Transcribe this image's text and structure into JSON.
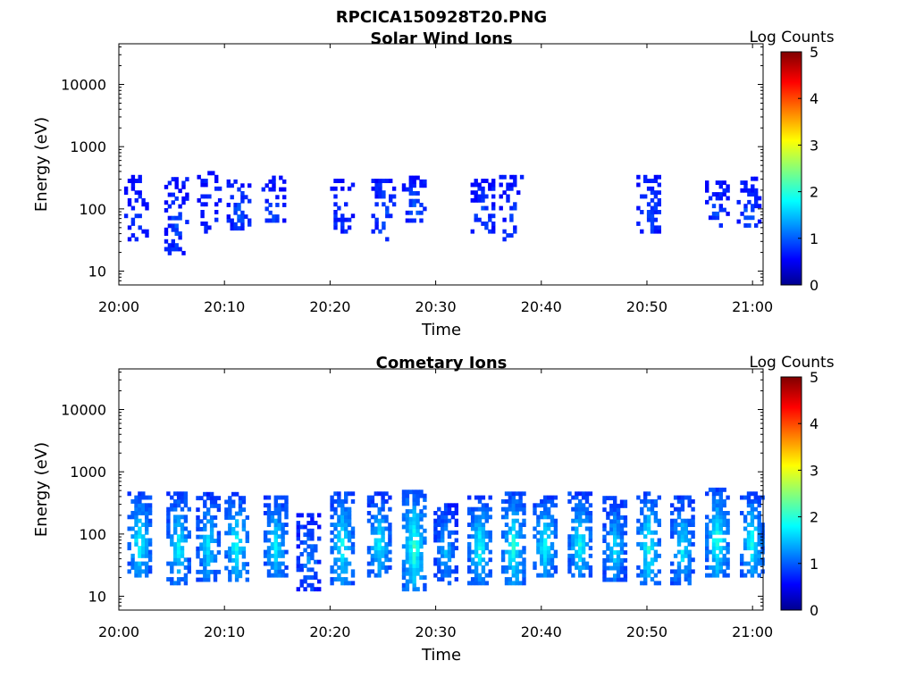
{
  "figure": {
    "title": "RPCICA150928T20.PNG"
  },
  "colorbar": {
    "label": "Log Counts",
    "ticks": [
      "0",
      "1",
      "2",
      "3",
      "4",
      "5"
    ],
    "range": [
      0,
      5
    ],
    "colormap": "jet"
  },
  "chart_data": [
    {
      "type": "heatmap",
      "title": "Solar Wind Ions",
      "xlabel": "Time",
      "ylabel": "Energy (eV)",
      "yscale": "log",
      "ylim": [
        6,
        45000
      ],
      "xlim_minutes_after_2000": [
        0,
        61
      ],
      "xticks": [
        "20:00",
        "20:10",
        "20:20",
        "20:30",
        "20:40",
        "20:50",
        "21:00"
      ],
      "yticks": [
        "10",
        "100",
        "1000",
        "10000"
      ],
      "bursts": [
        {
          "t": 1.5,
          "emin": 30,
          "emax": 300,
          "level": 0.3,
          "density": 0.45
        },
        {
          "t": 5.3,
          "emin": 18,
          "emax": 280,
          "level": 0.4,
          "density": 0.55
        },
        {
          "t": 8.4,
          "emin": 40,
          "emax": 350,
          "level": 0.35,
          "density": 0.35
        },
        {
          "t": 11.2,
          "emin": 45,
          "emax": 280,
          "level": 0.45,
          "density": 0.5
        },
        {
          "t": 14.5,
          "emin": 60,
          "emax": 300,
          "level": 0.4,
          "density": 0.45
        },
        {
          "t": 21.0,
          "emin": 40,
          "emax": 280,
          "level": 0.35,
          "density": 0.3
        },
        {
          "t": 24.9,
          "emin": 30,
          "emax": 320,
          "level": 0.45,
          "density": 0.4
        },
        {
          "t": 27.8,
          "emin": 60,
          "emax": 300,
          "level": 0.5,
          "density": 0.55
        },
        {
          "t": 34.3,
          "emin": 40,
          "emax": 260,
          "level": 0.4,
          "density": 0.4
        },
        {
          "t": 37.0,
          "emin": 30,
          "emax": 300,
          "level": 0.35,
          "density": 0.35
        },
        {
          "t": 50.0,
          "emin": 40,
          "emax": 300,
          "level": 0.45,
          "density": 0.45
        },
        {
          "t": 56.5,
          "emin": 50,
          "emax": 250,
          "level": 0.4,
          "density": 0.45
        },
        {
          "t": 59.5,
          "emin": 50,
          "emax": 300,
          "level": 0.45,
          "density": 0.5
        }
      ]
    },
    {
      "type": "heatmap",
      "title": "Cometary Ions",
      "xlabel": "Time",
      "ylabel": "Energy (eV)",
      "yscale": "log",
      "ylim": [
        6,
        45000
      ],
      "xlim_minutes_after_2000": [
        0,
        61
      ],
      "xticks": [
        "20:00",
        "20:10",
        "20:20",
        "20:30",
        "20:40",
        "20:50",
        "21:00"
      ],
      "yticks": [
        "10",
        "100",
        "1000",
        "10000"
      ],
      "bursts": [
        {
          "t": 1.8,
          "emin": 20,
          "emax": 450,
          "level": 1.3,
          "density": 0.8
        },
        {
          "t": 5.5,
          "emin": 15,
          "emax": 450,
          "level": 1.2,
          "density": 0.8
        },
        {
          "t": 8.3,
          "emin": 17,
          "emax": 430,
          "level": 1.1,
          "density": 0.75
        },
        {
          "t": 11.0,
          "emin": 17,
          "emax": 420,
          "level": 1.3,
          "density": 0.75
        },
        {
          "t": 14.7,
          "emin": 20,
          "emax": 380,
          "level": 1.2,
          "density": 0.8
        },
        {
          "t": 17.8,
          "emin": 12,
          "emax": 200,
          "level": 0.7,
          "density": 0.6
        },
        {
          "t": 21.0,
          "emin": 15,
          "emax": 450,
          "level": 1.3,
          "density": 0.8
        },
        {
          "t": 24.5,
          "emin": 20,
          "emax": 420,
          "level": 1.2,
          "density": 0.75
        },
        {
          "t": 27.8,
          "emin": 12,
          "emax": 500,
          "level": 1.5,
          "density": 0.85
        },
        {
          "t": 30.8,
          "emin": 15,
          "emax": 300,
          "level": 0.9,
          "density": 0.7
        },
        {
          "t": 34.0,
          "emin": 15,
          "emax": 400,
          "level": 1.3,
          "density": 0.85
        },
        {
          "t": 37.2,
          "emin": 15,
          "emax": 450,
          "level": 1.4,
          "density": 0.8
        },
        {
          "t": 40.2,
          "emin": 20,
          "emax": 380,
          "level": 1.3,
          "density": 0.8
        },
        {
          "t": 43.5,
          "emin": 20,
          "emax": 420,
          "level": 1.3,
          "density": 0.85
        },
        {
          "t": 46.8,
          "emin": 17,
          "emax": 350,
          "level": 1.1,
          "density": 0.8
        },
        {
          "t": 50.0,
          "emin": 15,
          "emax": 420,
          "level": 1.4,
          "density": 0.8
        },
        {
          "t": 53.2,
          "emin": 15,
          "emax": 380,
          "level": 1.2,
          "density": 0.75
        },
        {
          "t": 56.5,
          "emin": 20,
          "emax": 500,
          "level": 1.4,
          "density": 0.85
        },
        {
          "t": 59.8,
          "emin": 20,
          "emax": 450,
          "level": 1.3,
          "density": 0.75
        }
      ]
    }
  ]
}
